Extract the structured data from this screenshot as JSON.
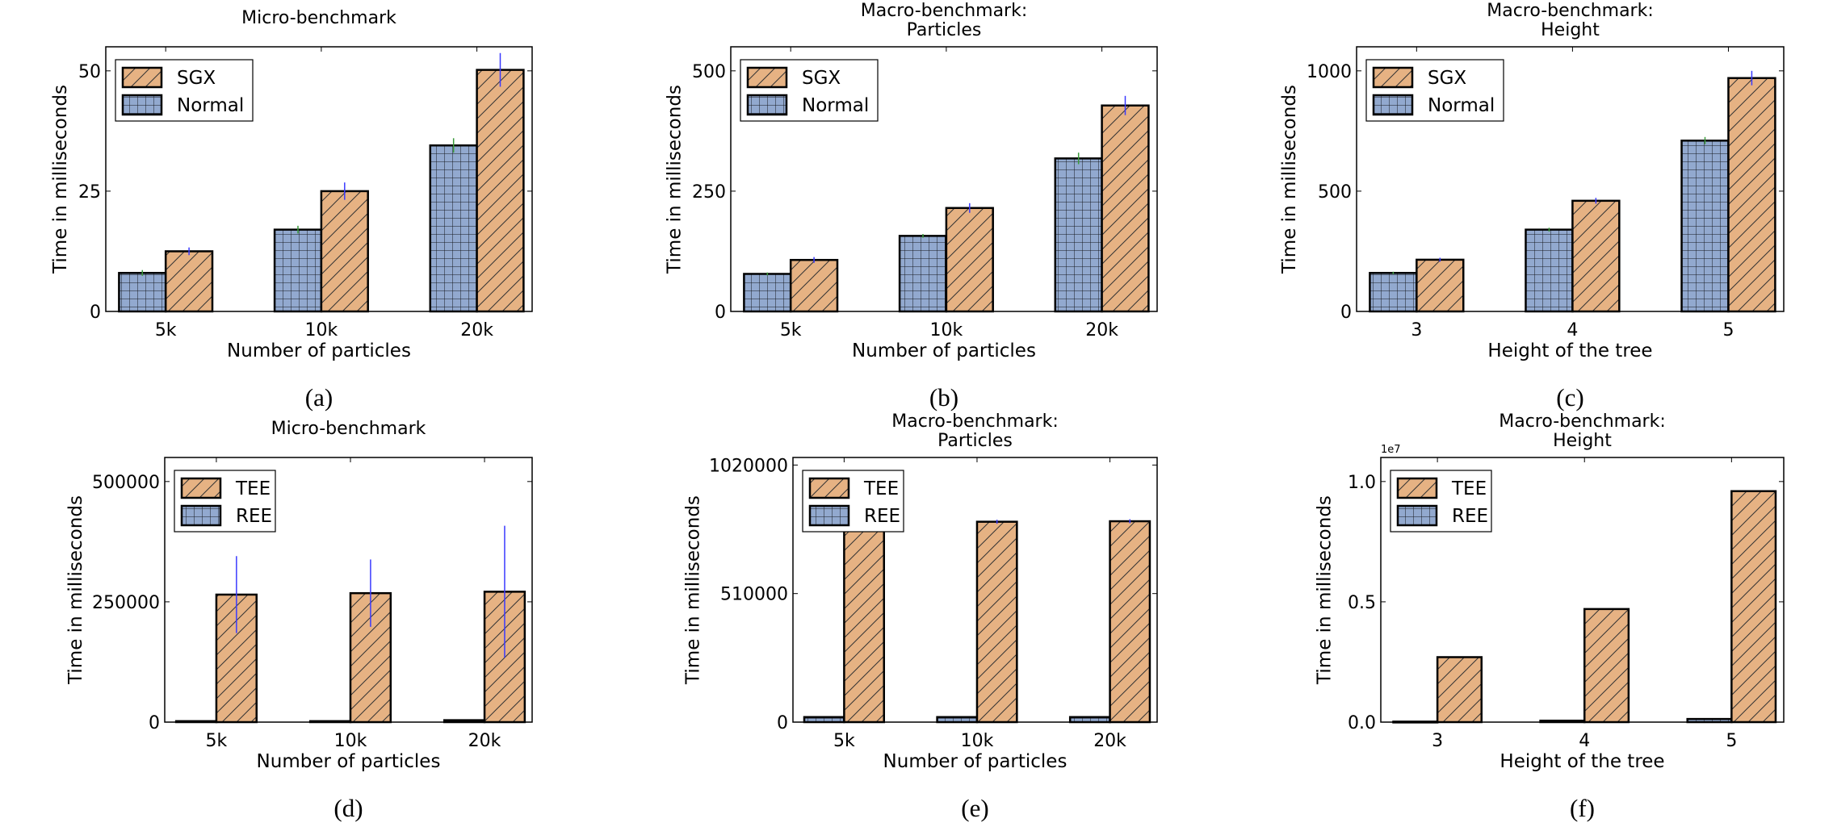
{
  "colors": {
    "normal_fill": "#92A9CF",
    "sgx_fill": "#E6B283",
    "err_sgx": "#3a3aff",
    "err_normal": "#3a9a3a",
    "edge": "#000000"
  },
  "chart_data": [
    {
      "type": "bar",
      "caption": "(a)",
      "title": [
        "Micro-benchmark"
      ],
      "xlabel": "Number of particles",
      "ylabel": "Time in milliseconds",
      "categories": [
        "5k",
        "10k",
        "20k"
      ],
      "ylim": [
        0,
        55
      ],
      "yticks": [
        0,
        25,
        50
      ],
      "ytick_labels": [
        "0",
        "25",
        "50"
      ],
      "offset_label": "",
      "legend": "top-left",
      "grid": false,
      "series": [
        {
          "name": "Normal",
          "hatch": "grid",
          "values": [
            8,
            17,
            34.5
          ],
          "errors": [
            0.6,
            0.8,
            1.5
          ]
        },
        {
          "name": "SGX",
          "hatch": "diagonal",
          "values": [
            12.5,
            25,
            50.2
          ],
          "errors": [
            0.8,
            1.8,
            3.5
          ]
        }
      ]
    },
    {
      "type": "bar",
      "caption": "(b)",
      "title": [
        "Macro-benchmark:",
        "Particles"
      ],
      "xlabel": "Number of particles",
      "ylabel": "Time in milliseconds",
      "categories": [
        "5k",
        "10k",
        "20k"
      ],
      "ylim": [
        0,
        550
      ],
      "yticks": [
        0,
        250,
        500
      ],
      "ytick_labels": [
        "0",
        "250",
        "500"
      ],
      "offset_label": "",
      "legend": "top-left",
      "grid": false,
      "series": [
        {
          "name": "Normal",
          "hatch": "grid",
          "values": [
            78,
            157,
            318
          ],
          "errors": [
            3,
            4,
            12
          ]
        },
        {
          "name": "SGX",
          "hatch": "diagonal",
          "values": [
            107,
            215,
            428
          ],
          "errors": [
            6,
            10,
            20
          ]
        }
      ]
    },
    {
      "type": "bar",
      "caption": "(c)",
      "title": [
        "Macro-benchmark:",
        "Height"
      ],
      "xlabel": "Height of the tree",
      "ylabel": "Time in milliseconds",
      "categories": [
        "3",
        "4",
        "5"
      ],
      "ylim": [
        0,
        1100
      ],
      "yticks": [
        0,
        500,
        1000
      ],
      "ytick_labels": [
        "0",
        "500",
        "1000"
      ],
      "offset_label": "",
      "legend": "top-left",
      "grid": false,
      "series": [
        {
          "name": "Normal",
          "hatch": "grid",
          "values": [
            160,
            340,
            710
          ],
          "errors": [
            5,
            8,
            15
          ]
        },
        {
          "name": "SGX",
          "hatch": "diagonal",
          "values": [
            215,
            460,
            970
          ],
          "errors": [
            8,
            12,
            30
          ]
        }
      ]
    },
    {
      "type": "bar",
      "caption": "(d)",
      "title": [
        "Micro-benchmark"
      ],
      "xlabel": "Number of particles",
      "ylabel": "Time in milliseconds",
      "categories": [
        "5k",
        "10k",
        "20k"
      ],
      "ylim": [
        0,
        550000
      ],
      "yticks": [
        0,
        250000,
        500000
      ],
      "ytick_labels": [
        "0",
        "250000",
        "500000"
      ],
      "offset_label": "",
      "legend": "top-left",
      "grid": false,
      "series": [
        {
          "name": "REE",
          "hatch": "grid",
          "values": [
            2000,
            2000,
            4000
          ],
          "errors": [
            0,
            0,
            0
          ]
        },
        {
          "name": "TEE",
          "hatch": "diagonal",
          "values": [
            265000,
            268000,
            271000
          ],
          "errors": [
            80000,
            70000,
            137000
          ]
        }
      ]
    },
    {
      "type": "bar",
      "caption": "(e)",
      "title": [
        "Macro-benchmark:",
        "Particles"
      ],
      "xlabel": "Number of particles",
      "ylabel": "Time in milliseconds",
      "categories": [
        "5k",
        "10k",
        "20k"
      ],
      "ylim": [
        0,
        1050000
      ],
      "yticks": [
        0,
        510000,
        1020000
      ],
      "ytick_labels": [
        "0",
        "510000",
        "1020000"
      ],
      "offset_label": "",
      "legend": "top-left",
      "grid": false,
      "series": [
        {
          "name": "REE",
          "hatch": "grid",
          "values": [
            20000,
            20000,
            20000
          ],
          "errors": [
            0,
            0,
            0
          ]
        },
        {
          "name": "TEE",
          "hatch": "diagonal",
          "values": [
            797000,
            795000,
            797000
          ],
          "errors": [
            8000,
            8000,
            8000
          ]
        }
      ]
    },
    {
      "type": "bar",
      "caption": "(f)",
      "title": [
        "Macro-benchmark:",
        "Height"
      ],
      "xlabel": "Height of the tree",
      "ylabel": "Time in milliseconds",
      "categories": [
        "3",
        "4",
        "5"
      ],
      "ylim": [
        0,
        11000000
      ],
      "yticks": [
        0,
        5000000,
        10000000
      ],
      "ytick_labels": [
        "0.0",
        "0.5",
        "1.0"
      ],
      "offset_label": "1e7",
      "legend": "top-left",
      "grid": false,
      "series": [
        {
          "name": "REE",
          "hatch": "grid",
          "values": [
            20000,
            60000,
            130000
          ],
          "errors": [
            0,
            0,
            0
          ]
        },
        {
          "name": "TEE",
          "hatch": "diagonal",
          "values": [
            2700000,
            4700000,
            9600000
          ],
          "errors": [
            0,
            0,
            0
          ]
        }
      ]
    }
  ]
}
